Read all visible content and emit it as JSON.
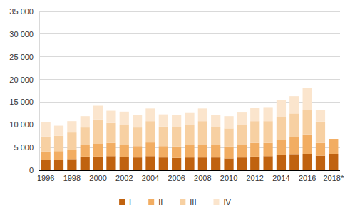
{
  "chart_data": {
    "type": "bar",
    "stacked": true,
    "grid": true,
    "legend": "bottom",
    "categories": [
      "1996",
      null,
      "1998",
      null,
      "2000",
      null,
      "2002",
      null,
      "2004",
      null,
      "2006",
      null,
      "2008",
      null,
      "2010",
      null,
      "2012",
      null,
      "2014",
      null,
      "2016",
      null,
      "2018*"
    ],
    "series": [
      {
        "name": "I",
        "color": "#c0620f",
        "values": [
          2200,
          2200,
          2300,
          3000,
          3000,
          3100,
          2900,
          2800,
          3100,
          2800,
          2700,
          2800,
          2800,
          2800,
          2600,
          2800,
          3000,
          3100,
          3300,
          3400,
          3600,
          3200,
          3600
        ]
      },
      {
        "name": "II",
        "color": "#f2ad62",
        "values": [
          1900,
          2000,
          2100,
          2600,
          2900,
          2900,
          2600,
          2500,
          3000,
          2500,
          2500,
          2700,
          2800,
          2700,
          2600,
          2700,
          3000,
          2900,
          3400,
          3900,
          4300,
          2800,
          3300
        ]
      },
      {
        "name": "III",
        "color": "#f7d0a2",
        "values": [
          3300,
          3400,
          3900,
          3800,
          5300,
          4400,
          4500,
          4100,
          4700,
          4300,
          4300,
          4400,
          5200,
          4000,
          4000,
          4400,
          4800,
          4800,
          5000,
          5200,
          5300,
          4700,
          null
        ]
      },
      {
        "name": "IV",
        "color": "#fbe5cd",
        "values": [
          3200,
          2200,
          2500,
          2500,
          3000,
          2700,
          2900,
          2700,
          2800,
          2700,
          2600,
          2700,
          2800,
          2700,
          2700,
          2800,
          3000,
          3100,
          3800,
          3800,
          4900,
          2600,
          null
        ]
      }
    ],
    "ylim": [
      0,
      35000
    ],
    "yticks": [
      {
        "value": 0,
        "label": "0"
      },
      {
        "value": 5000,
        "label": "5 000"
      },
      {
        "value": 10000,
        "label": "10 000"
      },
      {
        "value": 15000,
        "label": "15 000"
      },
      {
        "value": 20000,
        "label": "20 000"
      },
      {
        "value": 25000,
        "label": "25 000"
      },
      {
        "value": 30000,
        "label": "30 000"
      },
      {
        "value": 35000,
        "label": "35 000"
      }
    ]
  }
}
